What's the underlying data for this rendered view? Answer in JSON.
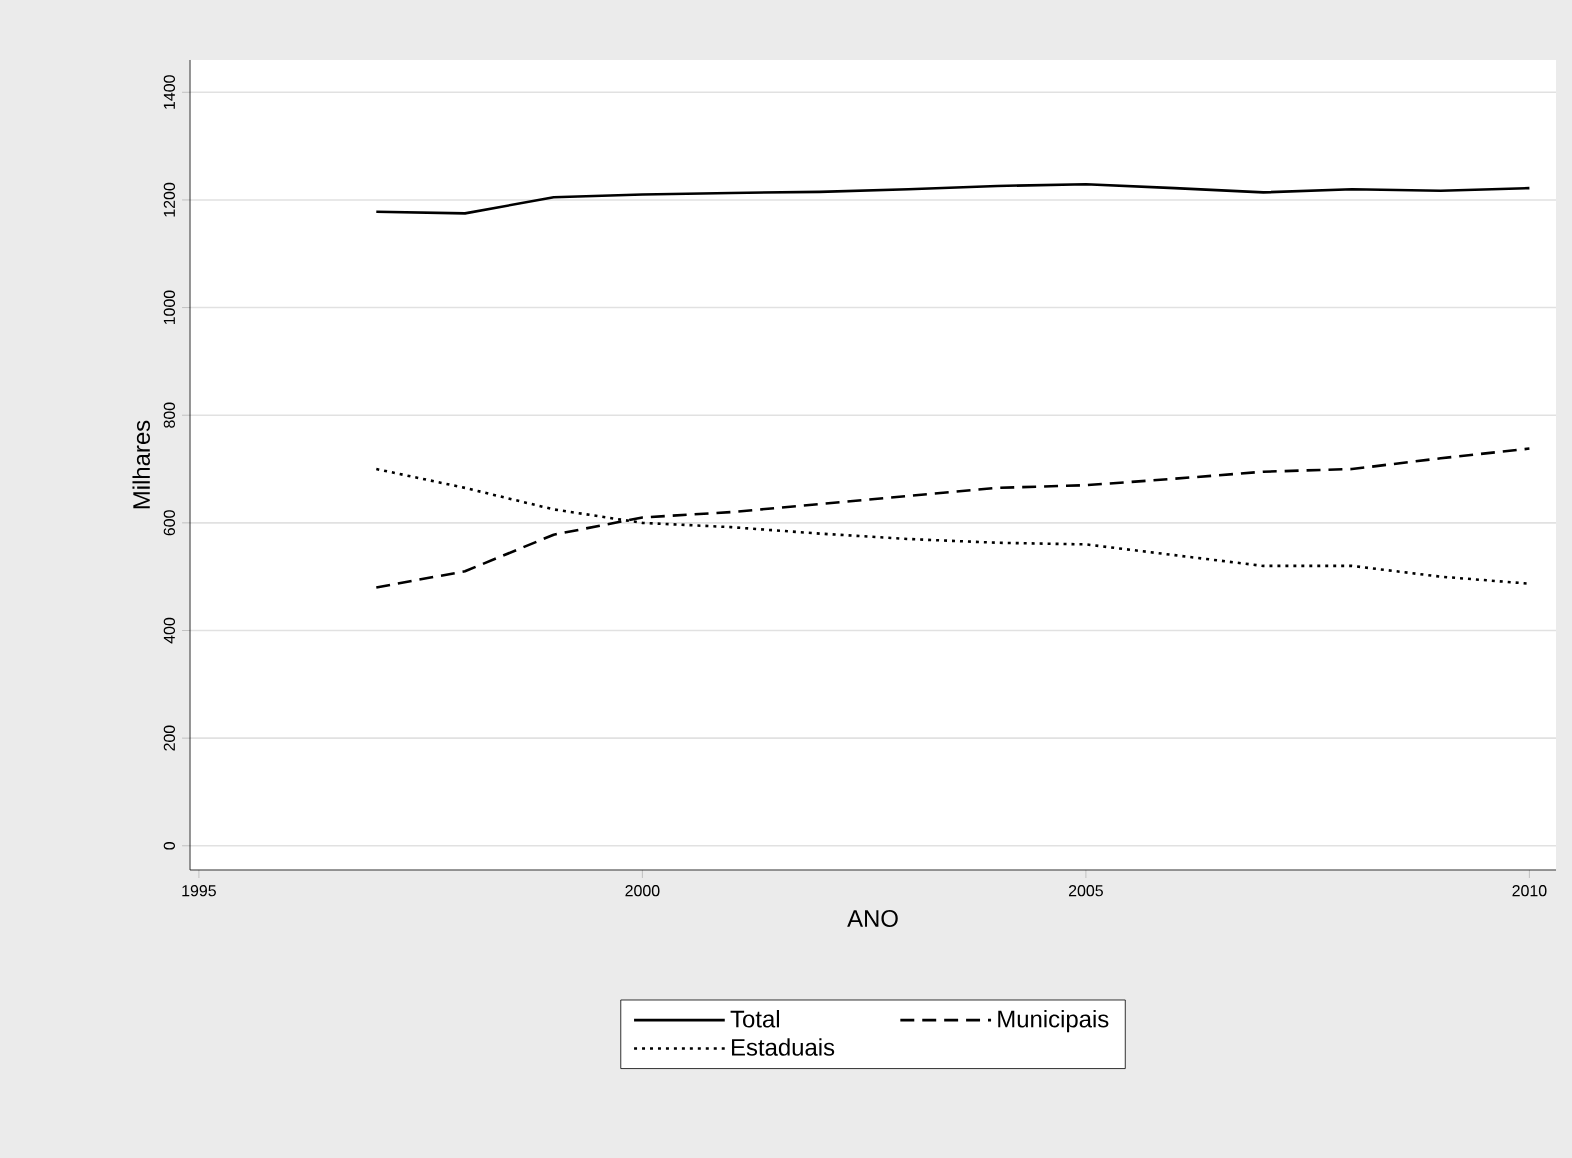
{
  "chart_data": {
    "type": "line",
    "xlabel": "ANO",
    "ylabel": "Milhares",
    "x": [
      1997,
      1998,
      1999,
      2000,
      2001,
      2002,
      2003,
      2004,
      2005,
      2006,
      2007,
      2008,
      2009,
      2010
    ],
    "series": [
      {
        "name": "Total",
        "color": "#000000",
        "line_style": "solid",
        "values": [
          1178,
          1175,
          1205,
          1210,
          1213,
          1215,
          1220,
          1226,
          1229,
          1222,
          1214,
          1220,
          1217,
          1222
        ]
      },
      {
        "name": "Municipais",
        "color": "#000000",
        "line_style": "dashed",
        "values": [
          480,
          510,
          578,
          610,
          620,
          635,
          650,
          665,
          670,
          682,
          695,
          700,
          720,
          738
        ]
      },
      {
        "name": "Estaduais",
        "color": "#000000",
        "line_style": "dotted",
        "values": [
          700,
          665,
          625,
          600,
          592,
          580,
          570,
          563,
          560,
          540,
          520,
          520,
          500,
          487
        ]
      }
    ],
    "xlim": [
      1994.9,
      2010.3
    ],
    "ylim": [
      -45,
      1460
    ],
    "xticks": [
      1995,
      2000,
      2005,
      2010
    ],
    "yticks": [
      0,
      200,
      400,
      600,
      800,
      1000,
      1200,
      1400
    ],
    "grid": "y",
    "legend": "bottom",
    "marker": "none"
  }
}
